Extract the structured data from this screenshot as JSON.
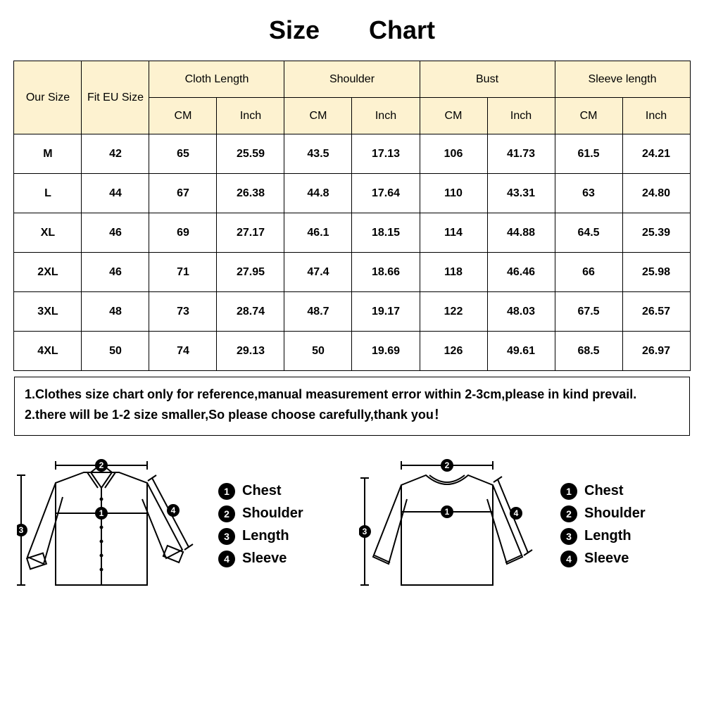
{
  "title": "Size Chart",
  "header_bg": "#fdf2d0",
  "border_color": "#000000",
  "table": {
    "group_headers": [
      "Our Size",
      "Fit EU Size",
      "Cloth  Length",
      "Shoulder",
      "Bust",
      "Sleeve length"
    ],
    "sub_headers": [
      "CM",
      "Inch"
    ],
    "rows": [
      {
        "our": "M",
        "eu": "42",
        "cloth_cm": "65",
        "cloth_in": "25.59",
        "sh_cm": "43.5",
        "sh_in": "17.13",
        "bust_cm": "106",
        "bust_in": "41.73",
        "sl_cm": "61.5",
        "sl_in": "24.21"
      },
      {
        "our": "L",
        "eu": "44",
        "cloth_cm": "67",
        "cloth_in": "26.38",
        "sh_cm": "44.8",
        "sh_in": "17.64",
        "bust_cm": "110",
        "bust_in": "43.31",
        "sl_cm": "63",
        "sl_in": "24.80"
      },
      {
        "our": "XL",
        "eu": "46",
        "cloth_cm": "69",
        "cloth_in": "27.17",
        "sh_cm": "46.1",
        "sh_in": "18.15",
        "bust_cm": "114",
        "bust_in": "44.88",
        "sl_cm": "64.5",
        "sl_in": "25.39"
      },
      {
        "our": "2XL",
        "eu": "46",
        "cloth_cm": "71",
        "cloth_in": "27.95",
        "sh_cm": "47.4",
        "sh_in": "18.66",
        "bust_cm": "118",
        "bust_in": "46.46",
        "sl_cm": "66",
        "sl_in": "25.98"
      },
      {
        "our": "3XL",
        "eu": "48",
        "cloth_cm": "73",
        "cloth_in": "28.74",
        "sh_cm": "48.7",
        "sh_in": "19.17",
        "bust_cm": "122",
        "bust_in": "48.03",
        "sl_cm": "67.5",
        "sl_in": "26.57"
      },
      {
        "our": "4XL",
        "eu": "50",
        "cloth_cm": "74",
        "cloth_in": "29.13",
        "sh_cm": "50",
        "sh_in": "19.69",
        "bust_cm": "126",
        "bust_in": "49.61",
        "sl_cm": "68.5",
        "sl_in": "26.97"
      }
    ]
  },
  "notes": {
    "line1": "1.Clothes size chart only for reference,manual measurement error  within 2-3cm,please in kind prevail.",
    "line2": "2.there will be 1-2 size smaller,So please choose carefully,thank you！"
  },
  "legend": {
    "items": [
      {
        "n": "1",
        "label": "Chest"
      },
      {
        "n": "2",
        "label": "Shoulder"
      },
      {
        "n": "3",
        "label": "Length"
      },
      {
        "n": "4",
        "label": "Sleeve"
      }
    ]
  }
}
